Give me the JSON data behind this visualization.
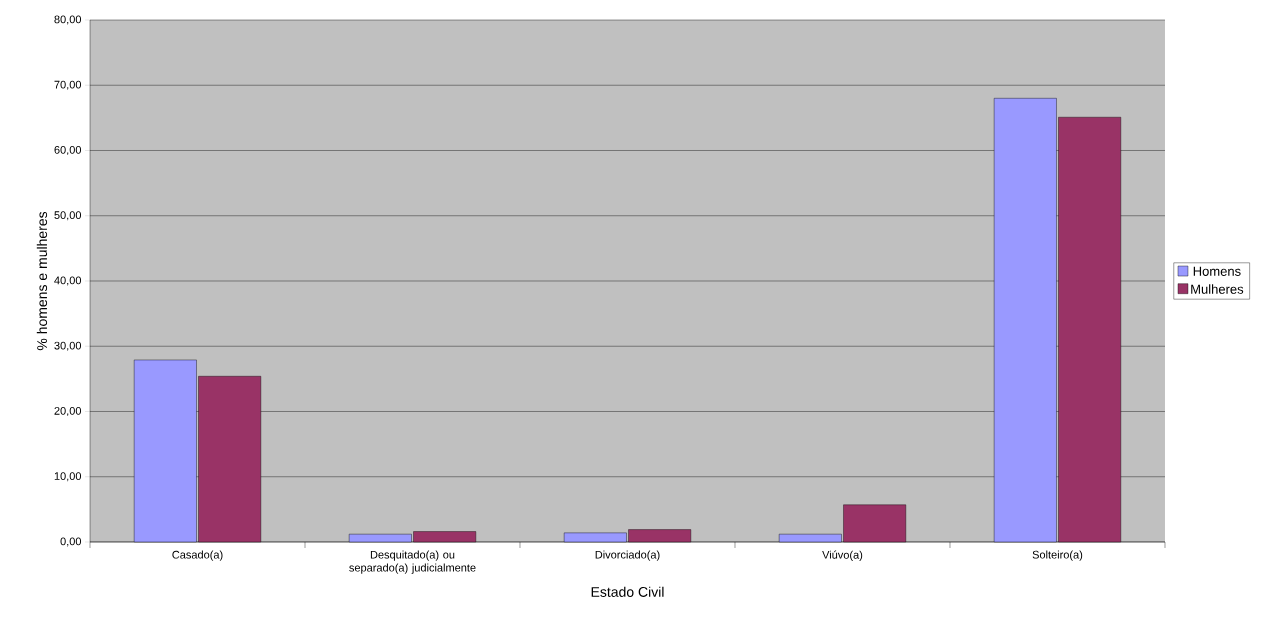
{
  "chart_data": {
    "type": "bar",
    "xlabel": "Estado Civil",
    "ylabel": "% homens e mulheres",
    "categories": [
      "Casado(a)",
      "Desquitado(a) ou separado(a) judicialmente",
      "Divorciado(a)",
      "Viúvo(a)",
      "Solteiro(a)"
    ],
    "series": [
      {
        "name": "Homens",
        "color": "#9999ff",
        "values": [
          27.9,
          1.2,
          1.4,
          1.2,
          68.0
        ]
      },
      {
        "name": "Mulheres",
        "color": "#993366",
        "values": [
          25.4,
          1.6,
          1.9,
          5.7,
          65.1
        ]
      }
    ],
    "ylim": [
      0,
      80
    ],
    "yticks": [
      {
        "value": 0,
        "label": "0,00"
      },
      {
        "value": 10,
        "label": "10,00"
      },
      {
        "value": 20,
        "label": "20,00"
      },
      {
        "value": 30,
        "label": "30,00"
      },
      {
        "value": 40,
        "label": "40,00"
      },
      {
        "value": 50,
        "label": "50,00"
      },
      {
        "value": 60,
        "label": "60,00"
      },
      {
        "value": 70,
        "label": "70,00"
      },
      {
        "value": 80,
        "label": "80,00"
      }
    ],
    "grid": "y",
    "legend": "right"
  }
}
